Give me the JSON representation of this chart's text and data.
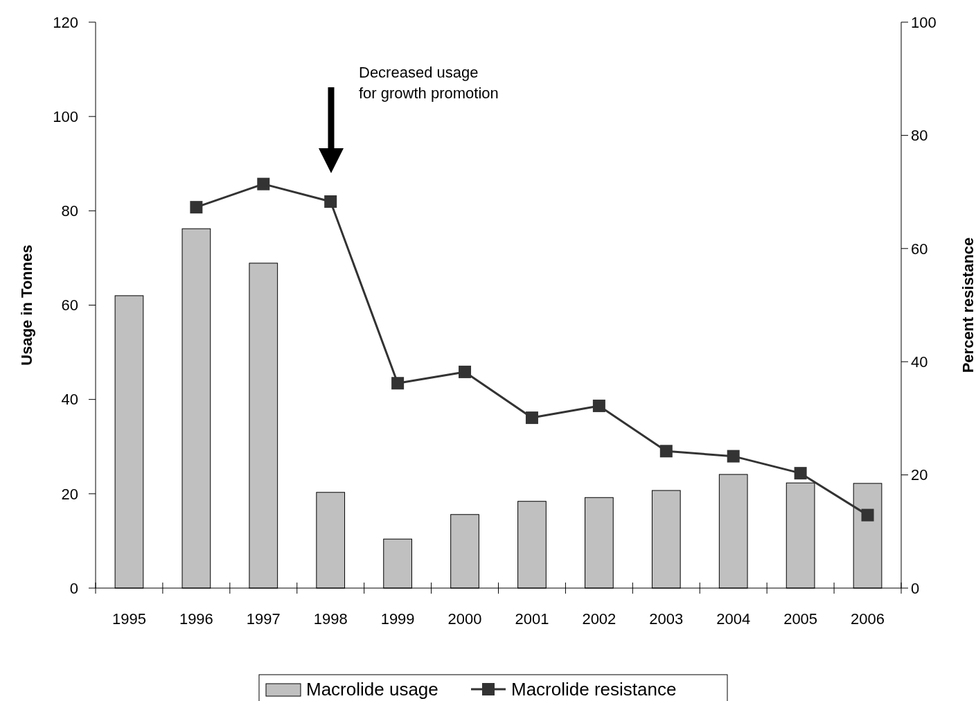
{
  "chart_data": {
    "type": "bar",
    "categories": [
      "1995",
      "1996",
      "1997",
      "1998",
      "1999",
      "2000",
      "2001",
      "2002",
      "2003",
      "2004",
      "2005",
      "2006"
    ],
    "series": [
      {
        "name": "Macrolide usage",
        "color": "#c0c0c0",
        "values": [
          62.0,
          76.2,
          68.9,
          20.3,
          10.4,
          15.6,
          18.4,
          19.2,
          20.7,
          24.1,
          22.3,
          22.2
        ]
      },
      {
        "name": "Macrolide resistance",
        "type": "line",
        "axis": "y2",
        "color": "#333333",
        "marker": "square",
        "values": [
          null,
          67.3,
          71.4,
          68.3,
          36.2,
          38.2,
          30.1,
          32.2,
          24.2,
          23.3,
          20.3,
          12.9
        ]
      }
    ],
    "ylabel": "Usage in Tonnes",
    "y2label": "Percent resistance",
    "ylim": [
      0,
      120
    ],
    "yticks": [
      0,
      20,
      40,
      60,
      80,
      100,
      120
    ],
    "y2lim": [
      0,
      100
    ],
    "y2ticks": [
      0,
      20,
      40,
      60,
      80,
      100
    ],
    "annotations": [
      "Decreased usage\nfor growth promotion"
    ],
    "grid": false,
    "legend": "bottom"
  }
}
